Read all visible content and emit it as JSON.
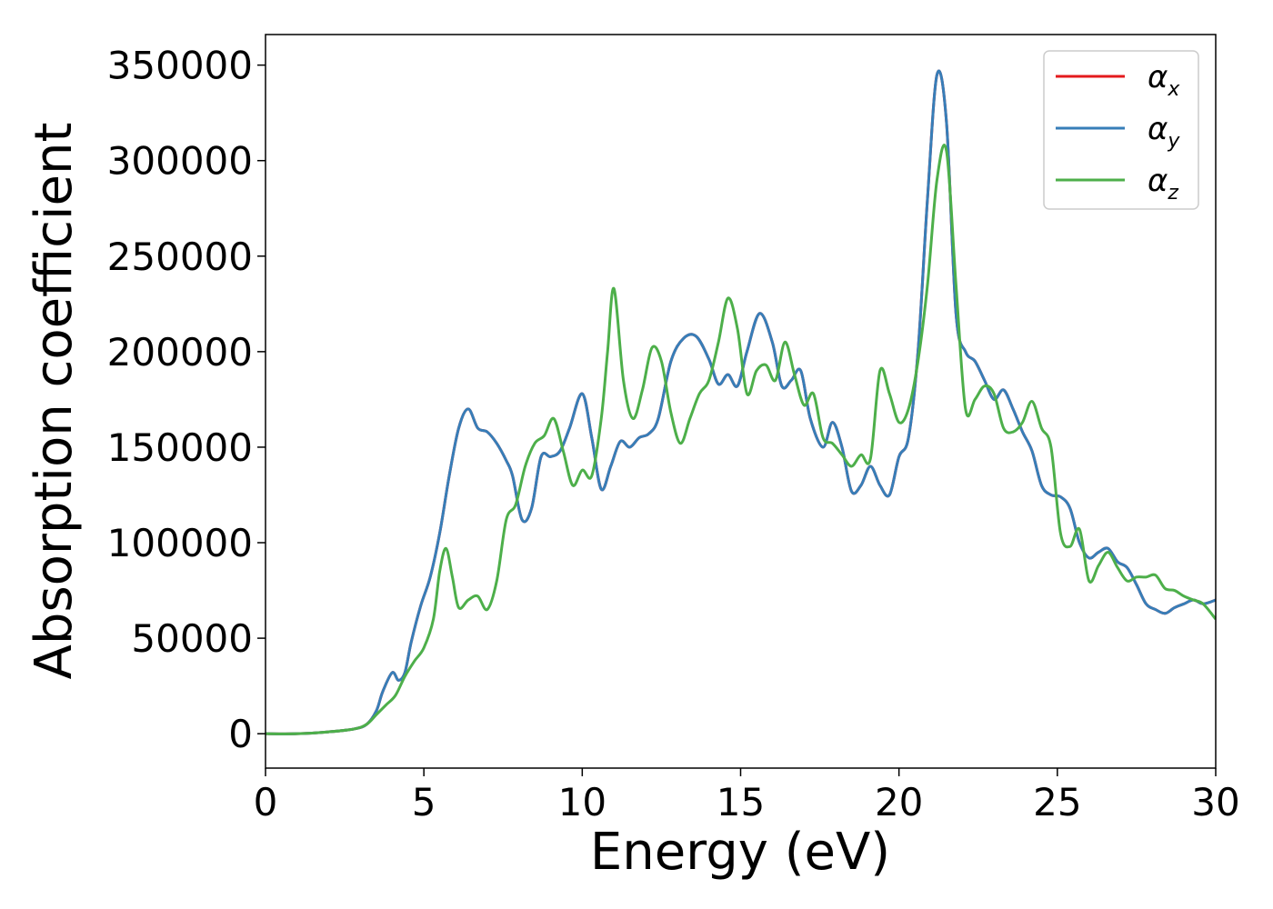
{
  "chart_data": {
    "type": "line",
    "title": "",
    "xlabel": "Energy (eV)",
    "ylabel": "Absorption coefficient",
    "xlim": [
      0,
      30
    ],
    "ylim": [
      -18000,
      366000
    ],
    "xticks": [
      0,
      5,
      10,
      15,
      20,
      25,
      30
    ],
    "xtick_labels": [
      "0",
      "5",
      "10",
      "15",
      "20",
      "25",
      "30"
    ],
    "yticks": [
      0,
      50000,
      100000,
      150000,
      200000,
      250000,
      300000,
      350000
    ],
    "ytick_labels": [
      "0",
      "50000",
      "100000",
      "150000",
      "200000",
      "250000",
      "300000",
      "350000"
    ],
    "grid": false,
    "legend_position": "top-right",
    "series": [
      {
        "name": "αx",
        "legend_symbol": "α",
        "legend_subscript": "x",
        "color": "#e41a1c",
        "x": [
          0,
          1,
          2,
          2.8,
          3.2,
          3.5,
          3.7,
          4.0,
          4.2,
          4.4,
          4.6,
          4.9,
          5.2,
          5.5,
          5.8,
          6.1,
          6.4,
          6.7,
          7.0,
          7.3,
          7.6,
          7.8,
          8.1,
          8.4,
          8.7,
          9.0,
          9.3,
          9.6,
          10.0,
          10.3,
          10.6,
          10.9,
          11.2,
          11.5,
          11.8,
          12.1,
          12.4,
          12.8,
          13.2,
          13.6,
          14.0,
          14.3,
          14.6,
          14.9,
          15.2,
          15.6,
          16.0,
          16.3,
          16.6,
          16.9,
          17.2,
          17.6,
          17.9,
          18.2,
          18.5,
          18.8,
          19.1,
          19.4,
          19.7,
          20.0,
          20.3,
          20.6,
          20.9,
          21.2,
          21.5,
          21.8,
          22.1,
          22.4,
          22.7,
          23.0,
          23.3,
          23.6,
          23.9,
          24.2,
          24.5,
          24.8,
          25.1,
          25.4,
          25.7,
          26.0,
          26.3,
          26.6,
          26.9,
          27.2,
          27.5,
          27.8,
          28.1,
          28.4,
          28.7,
          29.0,
          29.3,
          29.6,
          30.0
        ],
        "y": [
          0,
          0,
          1000,
          2500,
          5000,
          12000,
          22000,
          32000,
          28000,
          32000,
          48000,
          67000,
          82000,
          105000,
          135000,
          160000,
          170000,
          160000,
          158000,
          152000,
          143000,
          135000,
          112000,
          118000,
          145000,
          145000,
          148000,
          160000,
          178000,
          155000,
          128000,
          140000,
          153000,
          150000,
          155000,
          157000,
          165000,
          195000,
          207000,
          208000,
          196000,
          183000,
          188000,
          182000,
          200000,
          220000,
          205000,
          182000,
          185000,
          190000,
          165000,
          150000,
          163000,
          150000,
          127000,
          130000,
          140000,
          130000,
          125000,
          145000,
          155000,
          200000,
          280000,
          345000,
          320000,
          220000,
          200000,
          195000,
          185000,
          175000,
          180000,
          170000,
          158000,
          148000,
          130000,
          125000,
          124000,
          118000,
          100000,
          92000,
          95000,
          97000,
          90000,
          87000,
          78000,
          68000,
          65000,
          63000,
          66000,
          68000,
          70000,
          68000,
          70000
        ]
      },
      {
        "name": "αy",
        "legend_symbol": "α",
        "legend_subscript": "y",
        "color": "#377eb8",
        "x": [
          0,
          1,
          2,
          2.8,
          3.2,
          3.5,
          3.7,
          4.0,
          4.2,
          4.4,
          4.6,
          4.9,
          5.2,
          5.5,
          5.8,
          6.1,
          6.4,
          6.7,
          7.0,
          7.3,
          7.6,
          7.8,
          8.1,
          8.4,
          8.7,
          9.0,
          9.3,
          9.6,
          10.0,
          10.3,
          10.6,
          10.9,
          11.2,
          11.5,
          11.8,
          12.1,
          12.4,
          12.8,
          13.2,
          13.6,
          14.0,
          14.3,
          14.6,
          14.9,
          15.2,
          15.6,
          16.0,
          16.3,
          16.6,
          16.9,
          17.2,
          17.6,
          17.9,
          18.2,
          18.5,
          18.8,
          19.1,
          19.4,
          19.7,
          20.0,
          20.3,
          20.6,
          20.9,
          21.2,
          21.5,
          21.8,
          22.1,
          22.4,
          22.7,
          23.0,
          23.3,
          23.6,
          23.9,
          24.2,
          24.5,
          24.8,
          25.1,
          25.4,
          25.7,
          26.0,
          26.3,
          26.6,
          26.9,
          27.2,
          27.5,
          27.8,
          28.1,
          28.4,
          28.7,
          29.0,
          29.3,
          29.6,
          30.0
        ],
        "y": [
          0,
          0,
          1000,
          2500,
          5000,
          12000,
          22000,
          32000,
          28000,
          32000,
          48000,
          67000,
          82000,
          105000,
          135000,
          160000,
          170000,
          160000,
          158000,
          152000,
          143000,
          135000,
          112000,
          118000,
          145000,
          145000,
          148000,
          160000,
          178000,
          155000,
          128000,
          140000,
          153000,
          150000,
          155000,
          157000,
          165000,
          195000,
          207000,
          208000,
          196000,
          183000,
          188000,
          182000,
          200000,
          220000,
          205000,
          182000,
          185000,
          190000,
          165000,
          150000,
          163000,
          150000,
          127000,
          130000,
          140000,
          130000,
          125000,
          145000,
          155000,
          200000,
          280000,
          345000,
          320000,
          220000,
          200000,
          195000,
          185000,
          175000,
          180000,
          170000,
          158000,
          148000,
          130000,
          125000,
          124000,
          118000,
          100000,
          92000,
          95000,
          97000,
          90000,
          87000,
          78000,
          68000,
          65000,
          63000,
          66000,
          68000,
          70000,
          68000,
          70000
        ]
      },
      {
        "name": "αz",
        "legend_symbol": "α",
        "legend_subscript": "z",
        "color": "#4daf4a",
        "x": [
          0,
          1,
          2,
          2.8,
          3.2,
          3.5,
          3.8,
          4.1,
          4.4,
          4.7,
          5.0,
          5.3,
          5.5,
          5.7,
          5.9,
          6.1,
          6.4,
          6.7,
          7.0,
          7.3,
          7.6,
          7.9,
          8.2,
          8.5,
          8.8,
          9.1,
          9.4,
          9.7,
          10.0,
          10.3,
          10.6,
          10.8,
          11.0,
          11.3,
          11.6,
          11.9,
          12.2,
          12.5,
          12.8,
          13.1,
          13.4,
          13.7,
          14.0,
          14.3,
          14.6,
          14.9,
          15.2,
          15.5,
          15.8,
          16.1,
          16.4,
          16.7,
          17.0,
          17.3,
          17.6,
          17.9,
          18.2,
          18.5,
          18.8,
          19.1,
          19.4,
          19.7,
          20.0,
          20.3,
          20.6,
          20.9,
          21.2,
          21.5,
          21.8,
          22.1,
          22.4,
          22.7,
          23.0,
          23.3,
          23.6,
          23.9,
          24.2,
          24.5,
          24.8,
          25.1,
          25.4,
          25.7,
          26.0,
          26.3,
          26.6,
          26.9,
          27.2,
          27.5,
          27.8,
          28.1,
          28.4,
          28.7,
          29.0,
          29.3,
          29.6,
          30.0
        ],
        "y": [
          0,
          0,
          1000,
          2500,
          5000,
          10000,
          15000,
          20000,
          30000,
          38000,
          45000,
          60000,
          85000,
          97000,
          82000,
          66000,
          70000,
          72000,
          65000,
          80000,
          112000,
          120000,
          140000,
          152000,
          156000,
          165000,
          148000,
          130000,
          138000,
          135000,
          165000,
          200000,
          233000,
          185000,
          165000,
          180000,
          202000,
          195000,
          168000,
          152000,
          165000,
          178000,
          185000,
          205000,
          228000,
          212000,
          178000,
          190000,
          193000,
          185000,
          205000,
          188000,
          172000,
          178000,
          155000,
          152000,
          146000,
          140000,
          146000,
          144000,
          190000,
          178000,
          163000,
          170000,
          195000,
          235000,
          290000,
          305000,
          235000,
          170000,
          175000,
          182000,
          178000,
          160000,
          158000,
          163000,
          174000,
          160000,
          150000,
          105000,
          98000,
          107000,
          80000,
          88000,
          95000,
          87000,
          80000,
          82000,
          82000,
          83000,
          76000,
          75000,
          72000,
          70000,
          68000,
          60000
        ]
      }
    ]
  }
}
